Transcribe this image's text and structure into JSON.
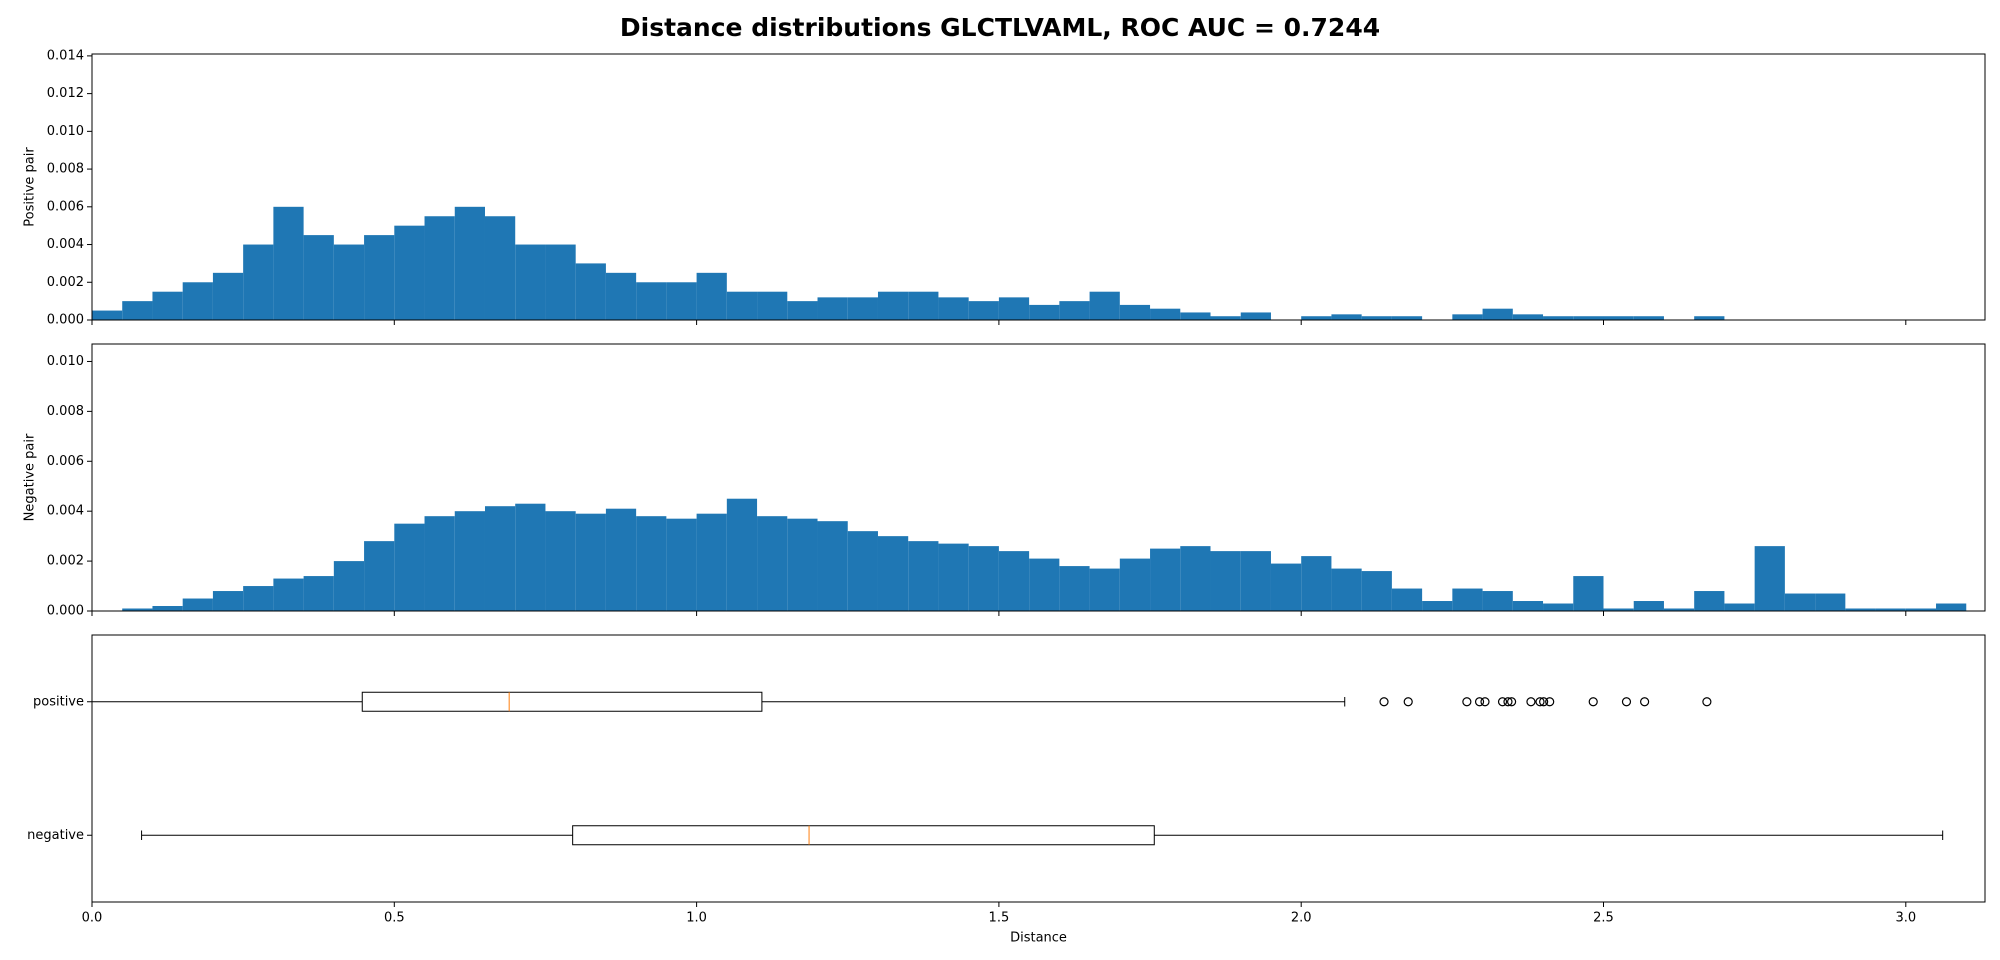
{
  "title": "Distance distributions GLCTLVAML, ROC AUC = 0.7244",
  "chart_data": [
    {
      "type": "histogram",
      "ylabel": "Positive pair",
      "color": "#1f77b4",
      "bins": [
        0,
        0.05,
        0.1,
        0.15,
        0.2,
        0.25,
        0.3,
        0.35,
        0.4,
        0.45,
        0.5,
        0.55,
        0.6,
        0.65,
        0.7,
        0.75,
        0.8,
        0.85,
        0.9,
        0.95,
        1.0,
        1.05,
        1.1,
        1.15,
        1.2,
        1.25,
        1.3,
        1.35,
        1.4,
        1.45,
        1.5,
        1.55,
        1.6,
        1.65,
        1.7,
        1.75,
        1.8,
        1.85,
        1.9,
        1.95,
        2.0,
        2.05,
        2.1,
        2.15,
        2.2,
        2.25,
        2.3,
        2.35,
        2.4,
        2.45,
        2.5,
        2.55,
        2.6,
        2.65,
        2.7,
        2.75,
        2.8,
        2.85,
        2.9,
        2.95,
        3.0,
        3.05,
        3.1
      ],
      "values": [
        0.0005,
        0.001,
        0.0015,
        0.002,
        0.0025,
        0.004,
        0.006,
        0.0045,
        0.004,
        0.0045,
        0.005,
        0.0055,
        0.006,
        0.0055,
        0.004,
        0.004,
        0.003,
        0.0025,
        0.002,
        0.002,
        0.0025,
        0.0015,
        0.0015,
        0.001,
        0.0012,
        0.0012,
        0.0015,
        0.0015,
        0.0012,
        0.001,
        0.0012,
        0.0008,
        0.001,
        0.0015,
        0.0008,
        0.0006,
        0.0004,
        0.0002,
        0.0004,
        0,
        0.0002,
        0.0003,
        0.0002,
        0.0002,
        0,
        0.0003,
        0.0006,
        0.0003,
        0.0002,
        0.0002,
        0.0002,
        0.0002,
        0,
        0.0002,
        0,
        0,
        0,
        0,
        0,
        0,
        0,
        0
      ],
      "xlim": [
        0,
        3.131
      ],
      "xticks": [
        0,
        0.5,
        1,
        1.5,
        2,
        2.5,
        3
      ],
      "ylim": [
        0,
        0.0141
      ],
      "yticks": [
        {
          "value": 0,
          "label": "0.000"
        },
        {
          "value": 0.002,
          "label": "0.002"
        },
        {
          "value": 0.004,
          "label": "0.004"
        },
        {
          "value": 0.006,
          "label": "0.006"
        },
        {
          "value": 0.008,
          "label": "0.008"
        },
        {
          "value": 0.01,
          "label": "0.010"
        },
        {
          "value": 0.012,
          "label": "0.012"
        },
        {
          "value": 0.014,
          "label": "0.014"
        }
      ]
    },
    {
      "type": "histogram",
      "ylabel": "Negative pair",
      "color": "#1f77b4",
      "bins": [
        0,
        0.05,
        0.1,
        0.15,
        0.2,
        0.25,
        0.3,
        0.35,
        0.4,
        0.45,
        0.5,
        0.55,
        0.6,
        0.65,
        0.7,
        0.75,
        0.8,
        0.85,
        0.9,
        0.95,
        1.0,
        1.05,
        1.1,
        1.15,
        1.2,
        1.25,
        1.3,
        1.35,
        1.4,
        1.45,
        1.5,
        1.55,
        1.6,
        1.65,
        1.7,
        1.75,
        1.8,
        1.85,
        1.9,
        1.95,
        2.0,
        2.05,
        2.1,
        2.15,
        2.2,
        2.25,
        2.3,
        2.35,
        2.4,
        2.45,
        2.5,
        2.55,
        2.6,
        2.65,
        2.7,
        2.75,
        2.8,
        2.85,
        2.9,
        2.95,
        3.0,
        3.05,
        3.1
      ],
      "values": [
        0,
        0.0001,
        0.0002,
        0.0005,
        0.0008,
        0.001,
        0.0013,
        0.0014,
        0.002,
        0.0028,
        0.0035,
        0.0038,
        0.004,
        0.0042,
        0.0043,
        0.004,
        0.0039,
        0.0041,
        0.0038,
        0.0037,
        0.0039,
        0.0045,
        0.0038,
        0.0037,
        0.0036,
        0.0032,
        0.003,
        0.0028,
        0.0027,
        0.0026,
        0.0024,
        0.0021,
        0.0018,
        0.0017,
        0.0021,
        0.0025,
        0.0026,
        0.0024,
        0.0024,
        0.0019,
        0.0022,
        0.0017,
        0.0016,
        0.0009,
        0.0004,
        0.0009,
        0.0008,
        0.0004,
        0.0003,
        0.0014,
        0.0001,
        0.0004,
        0.0001,
        0.0008,
        0.0003,
        0.0026,
        0.0007,
        0.0007,
        0.0001,
        0.0001,
        0.0001,
        0.0003
      ],
      "xlim": [
        0,
        3.131
      ],
      "xticks": [
        0,
        0.5,
        1,
        1.5,
        2,
        2.5,
        3
      ],
      "ylim": [
        0,
        0.0107
      ],
      "yticks": [
        {
          "value": 0,
          "label": "0.000"
        },
        {
          "value": 0.002,
          "label": "0.002"
        },
        {
          "value": 0.004,
          "label": "0.004"
        },
        {
          "value": 0.006,
          "label": "0.006"
        },
        {
          "value": 0.008,
          "label": "0.008"
        },
        {
          "value": 0.01,
          "label": "0.010"
        }
      ]
    },
    {
      "type": "box",
      "xlabel": "Distance",
      "color": "#000000",
      "median_color": "#ff7f0e",
      "categories": [
        "positive",
        "negative"
      ],
      "low": [
        0.0,
        0.082
      ],
      "q1": [
        0.447,
        0.795
      ],
      "median": [
        0.69,
        1.186
      ],
      "q3": [
        1.108,
        1.757
      ],
      "high": [
        2.072,
        3.061
      ],
      "outliers": [
        [
          2.137,
          2.177,
          2.274,
          2.295,
          2.304,
          2.333,
          2.342,
          2.348,
          2.38,
          2.395,
          2.401,
          2.411,
          2.483,
          2.538,
          2.568,
          2.671
        ],
        []
      ],
      "xlim": [
        0,
        3.131
      ],
      "xticks": [
        {
          "value": 0,
          "label": "0.0"
        },
        0.5,
        {
          "value": 1,
          "label": "1.0"
        },
        1.5,
        {
          "value": 2,
          "label": "2.0"
        },
        2.5,
        {
          "value": 3,
          "label": "3.0"
        }
      ]
    }
  ]
}
